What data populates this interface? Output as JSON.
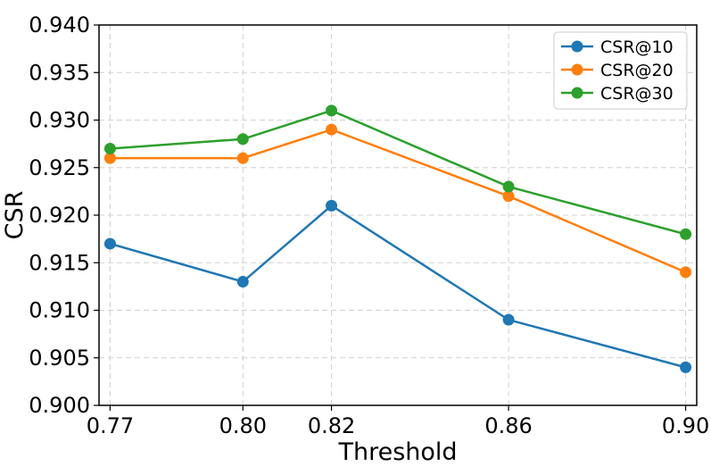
{
  "chart_data": {
    "type": "line",
    "xlabel": "Threshold",
    "ylabel": "CSR",
    "x": [
      0.77,
      0.8,
      0.82,
      0.86,
      0.9
    ],
    "x_tick_labels": [
      "0.77",
      "0.80",
      "0.82",
      "0.86",
      "0.90"
    ],
    "ylim": [
      0.9,
      0.94
    ],
    "y_ticks": [
      0.9,
      0.905,
      0.91,
      0.915,
      0.92,
      0.925,
      0.93,
      0.935,
      0.94
    ],
    "y_tick_labels": [
      "0.900",
      "0.905",
      "0.910",
      "0.915",
      "0.920",
      "0.925",
      "0.930",
      "0.935",
      "0.940"
    ],
    "grid": true,
    "legend_position": "top-right",
    "series": [
      {
        "name": "CSR@10",
        "color": "#1f77b4",
        "values": [
          0.917,
          0.913,
          0.921,
          0.909,
          0.904
        ]
      },
      {
        "name": "CSR@20",
        "color": "#ff7f0e",
        "values": [
          0.926,
          0.926,
          0.929,
          0.922,
          0.914
        ]
      },
      {
        "name": "CSR@30",
        "color": "#2ca02c",
        "values": [
          0.927,
          0.928,
          0.931,
          0.923,
          0.918
        ]
      }
    ]
  }
}
